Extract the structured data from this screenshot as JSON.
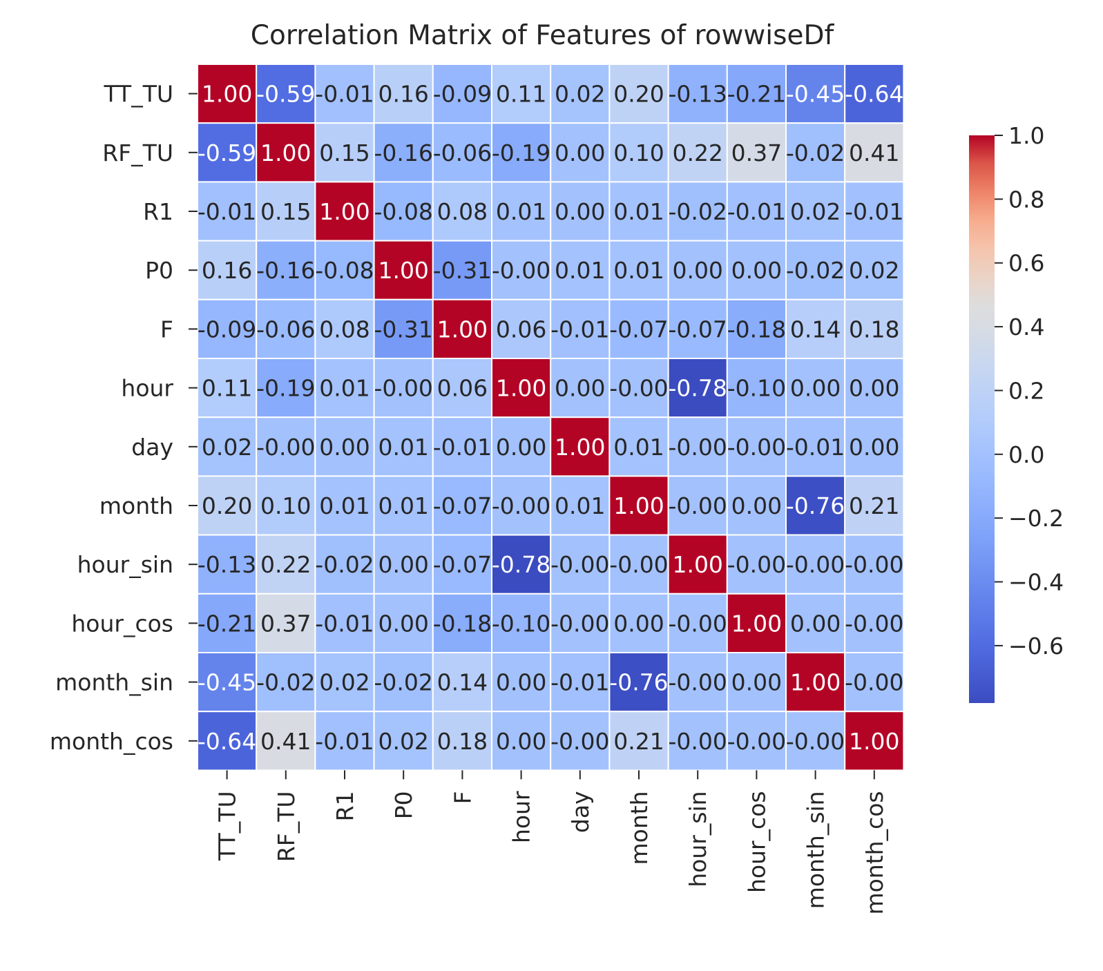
{
  "chart_data": {
    "type": "heatmap",
    "title": "Correlation Matrix of Features of rowwiseDf",
    "labels": [
      "TT_TU",
      "RF_TU",
      "R1",
      "P0",
      "F",
      "hour",
      "day",
      "month",
      "hour_sin",
      "hour_cos",
      "month_sin",
      "month_cos"
    ],
    "matrix": [
      [
        1.0,
        -0.59,
        -0.01,
        0.16,
        -0.09,
        0.11,
        0.02,
        0.2,
        -0.13,
        -0.21,
        -0.45,
        -0.64
      ],
      [
        -0.59,
        1.0,
        0.15,
        -0.16,
        -0.06,
        -0.19,
        0.0,
        0.1,
        0.22,
        0.37,
        -0.02,
        0.41
      ],
      [
        -0.01,
        0.15,
        1.0,
        -0.08,
        0.08,
        0.01,
        0.0,
        0.01,
        -0.02,
        -0.01,
        0.02,
        -0.01
      ],
      [
        0.16,
        -0.16,
        -0.08,
        1.0,
        -0.31,
        -0.0,
        0.01,
        0.01,
        0.0,
        0.0,
        -0.02,
        0.02
      ],
      [
        -0.09,
        -0.06,
        0.08,
        -0.31,
        1.0,
        0.06,
        -0.01,
        -0.07,
        -0.07,
        -0.18,
        0.14,
        0.18
      ],
      [
        0.11,
        -0.19,
        0.01,
        -0.0,
        0.06,
        1.0,
        0.0,
        -0.0,
        -0.78,
        -0.1,
        0.0,
        0.0
      ],
      [
        0.02,
        -0.0,
        0.0,
        0.01,
        -0.01,
        0.0,
        1.0,
        0.01,
        -0.0,
        -0.0,
        -0.01,
        0.0
      ],
      [
        0.2,
        0.1,
        0.01,
        0.01,
        -0.07,
        -0.0,
        0.01,
        1.0,
        -0.0,
        0.0,
        -0.76,
        0.21
      ],
      [
        -0.13,
        0.22,
        -0.02,
        0.0,
        -0.07,
        -0.78,
        -0.0,
        -0.0,
        1.0,
        -0.0,
        -0.0,
        -0.0
      ],
      [
        -0.21,
        0.37,
        -0.01,
        0.0,
        -0.18,
        -0.1,
        -0.0,
        0.0,
        -0.0,
        1.0,
        0.0,
        -0.0
      ],
      [
        -0.45,
        -0.02,
        0.02,
        -0.02,
        0.14,
        0.0,
        -0.01,
        -0.76,
        -0.0,
        0.0,
        1.0,
        -0.0
      ],
      [
        -0.64,
        0.41,
        -0.01,
        0.02,
        0.18,
        0.0,
        -0.0,
        0.21,
        -0.0,
        -0.0,
        -0.0,
        1.0
      ]
    ],
    "value_format": "2 decimals",
    "colormap": "coolwarm",
    "vmin": -0.78,
    "vmax": 1.0,
    "colorbar_ticks": [
      "1.0",
      "0.8",
      "0.6",
      "0.4",
      "0.2",
      "0.0",
      "−0.2",
      "−0.4",
      "−0.6"
    ],
    "colorbar_tick_values": [
      1.0,
      0.8,
      0.6,
      0.4,
      0.2,
      0.0,
      -0.2,
      -0.4,
      -0.6
    ],
    "colors": {
      "low": "#3b4cc0",
      "mid": "#dddddd",
      "high": "#b40426",
      "grid": "#ffffff",
      "text_dark": "#262626",
      "text_light": "#ffffff"
    }
  }
}
